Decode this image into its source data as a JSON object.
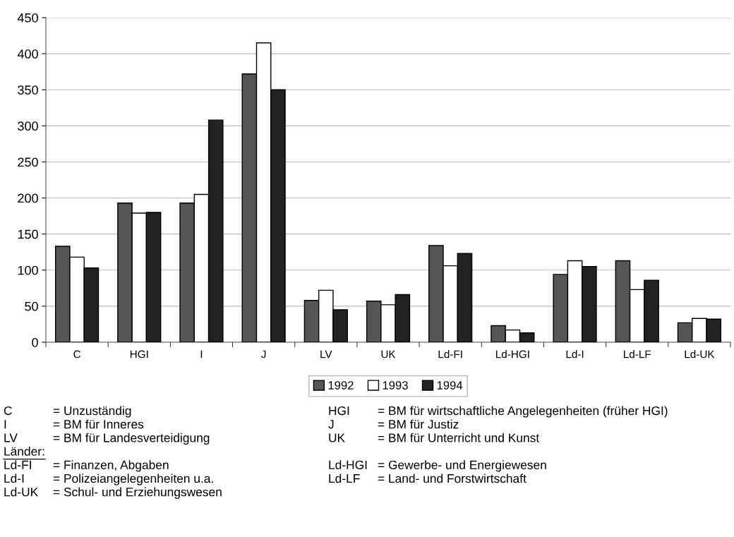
{
  "chart_data": {
    "type": "bar",
    "categories": [
      "C",
      "HGI",
      "I",
      "J",
      "LV",
      "UK",
      "Ld-FI",
      "Ld-HGI",
      "Ld-I",
      "Ld-LF",
      "Ld-UK"
    ],
    "series": [
      {
        "name": "1992",
        "color": "#555555",
        "values": [
          133,
          193,
          193,
          372,
          58,
          57,
          134,
          23,
          94,
          113,
          27
        ]
      },
      {
        "name": "1993",
        "color": "#ffffff",
        "values": [
          118,
          179,
          205,
          415,
          72,
          52,
          106,
          17,
          113,
          73,
          33
        ]
      },
      {
        "name": "1994",
        "color": "#222222",
        "values": [
          103,
          180,
          308,
          350,
          45,
          66,
          123,
          13,
          105,
          86,
          32
        ]
      }
    ],
    "ylim": [
      0,
      450
    ],
    "yticks": [
      0,
      50,
      100,
      150,
      200,
      250,
      300,
      350,
      400,
      450
    ],
    "grid": "y",
    "legend": "bottom",
    "annotations": [
      "C",
      "= Unzuständig",
      "HGI",
      "= BM für wirtschaftliche Angelegenheiten (früher HGI)",
      "I",
      "= BM für Inneres",
      "J",
      "= BM für Justiz",
      "LV",
      "= BM für Landesverteidigung",
      "UK",
      "= BM für Unterricht und Kunst",
      "Länder:",
      "Ld-FI",
      "= Finanzen, Abgaben",
      "Ld-HGI",
      "= Gewerbe- und Energiewesen",
      "Ld-I",
      "= Polizeiangelegenheiten u.a.",
      "Ld-LF",
      "= Land- und Forstwirtschaft",
      "Ld-UK",
      "= Schul- und Erziehungswesen"
    ]
  }
}
